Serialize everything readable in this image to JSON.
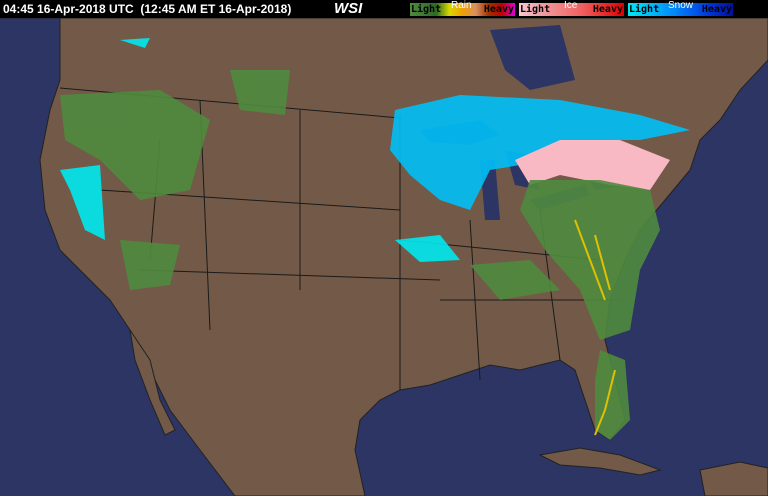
{
  "header": {
    "timestamp": "04:45 16-Apr-2018 UTC  (12:45 AM ET 16-Apr-2018)",
    "logo": "WSI"
  },
  "legend": [
    {
      "category": "Rain",
      "low_label": "Light",
      "high_label": "Heavy",
      "colors": [
        "#4f8a3e",
        "#3f7a32",
        "#2d6a26",
        "#d8d800",
        "#f0a000",
        "#d89060",
        "#a03000",
        "#c00000",
        "#e000e0"
      ]
    },
    {
      "category": "Ice",
      "low_label": "Light",
      "high_label": "Heavy",
      "colors": [
        "#f8c8d0",
        "#f0a0a8",
        "#f08080",
        "#f06060",
        "#e83030",
        "#e00000"
      ]
    },
    {
      "category": "Snow",
      "low_label": "Light",
      "high_label": "Heavy",
      "colors": [
        "#00e8f0",
        "#00c0f8",
        "#0090f8",
        "#0060f0",
        "#0030d0",
        "#0010a0"
      ]
    }
  ],
  "colors": {
    "ocean": "#2c3564",
    "land": "#735a48",
    "borders": "#1a1a1a"
  }
}
